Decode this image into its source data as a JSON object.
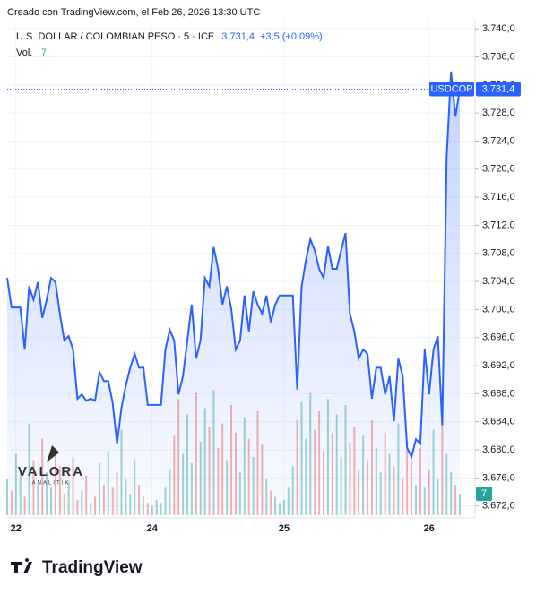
{
  "credit": "Creado con TradingView.com, el Feb 26, 2026 13:30 UTC",
  "brand": "TradingView",
  "watermark": {
    "title": "VALORA",
    "subtitle": "ANALITIK"
  },
  "chart_data": {
    "type": "line",
    "title": "U.S. DOLLAR / COLOMBIAN PESO · 5 · ICE",
    "symbol": "USDCOP",
    "last_label": "3.731,4",
    "change": "+3,5 (+0,09%)",
    "color": "#2962ff",
    "grid": true,
    "categories": [
      null,
      null,
      "22",
      null,
      null,
      null,
      null,
      null,
      null,
      null,
      null,
      null,
      null,
      null,
      null,
      null,
      null,
      null,
      null,
      null,
      null,
      null,
      null,
      null,
      null,
      null,
      null,
      null,
      null,
      null,
      null,
      null,
      null,
      "24",
      null,
      null,
      null,
      null,
      null,
      null,
      null,
      null,
      null,
      null,
      null,
      null,
      null,
      null,
      null,
      null,
      null,
      null,
      null,
      null,
      null,
      null,
      null,
      null,
      null,
      null,
      null,
      null,
      null,
      "25",
      null,
      null,
      null,
      null,
      null,
      null,
      null,
      null,
      null,
      null,
      null,
      null,
      null,
      null,
      null,
      null,
      null,
      null,
      null,
      null,
      null,
      null,
      null,
      null,
      null,
      null,
      null,
      null,
      null,
      null,
      null,
      null,
      "26",
      null,
      null,
      null,
      null,
      null,
      null,
      null
    ],
    "values": [
      3704.5,
      3700.3,
      3700.3,
      3700.3,
      3694.3,
      3703.3,
      3701.4,
      3703.9,
      3698.8,
      3701.4,
      3704.5,
      3703.9,
      3699.4,
      3695.6,
      3696.2,
      3694.3,
      3687.3,
      3687.9,
      3687.0,
      3687.3,
      3687.0,
      3691.1,
      3689.8,
      3689.8,
      3686.7,
      3680.9,
      3686.0,
      3689.2,
      3691.7,
      3693.7,
      3691.7,
      3691.7,
      3686.4,
      3686.4,
      3686.4,
      3686.4,
      3694.3,
      3697.1,
      3695.6,
      3687.9,
      3690.5,
      3695.6,
      3700.7,
      3693.0,
      3695.6,
      3704.5,
      3703.3,
      3708.9,
      3705.8,
      3700.7,
      3703.3,
      3700.1,
      3694.3,
      3695.6,
      3702.0,
      3696.9,
      3702.6,
      3700.7,
      3699.4,
      3702.0,
      3698.2,
      3700.7,
      3702.0,
      3702.0,
      3702.0,
      3702.0,
      3688.6,
      3703.3,
      3707.1,
      3710.0,
      3708.4,
      3705.8,
      3704.5,
      3709.0,
      3705.8,
      3705.8,
      3708.4,
      3710.9,
      3699.4,
      3696.9,
      3693.0,
      3694.3,
      3693.7,
      3687.3,
      3691.7,
      3691.7,
      3687.9,
      3690.5,
      3684.1,
      3693.0,
      3690.5,
      3680.3,
      3679.0,
      3681.5,
      3680.9,
      3694.3,
      3687.9,
      3694.3,
      3696.2,
      3683.5,
      3721.7,
      3733.9,
      3727.5,
      3731.4
    ],
    "volume": {
      "name": "Vol.",
      "up_color": "#26a69a",
      "down_color": "#ef5350",
      "values": [
        12,
        8,
        20,
        15,
        6,
        30,
        18,
        10,
        25,
        14,
        9,
        22,
        16,
        7,
        11,
        19,
        5,
        8,
        13,
        4,
        6,
        17,
        10,
        21,
        9,
        14,
        28,
        12,
        7,
        18,
        10,
        6,
        4,
        3,
        5,
        4,
        9,
        15,
        26,
        38,
        20,
        33,
        17,
        40,
        24,
        35,
        29,
        41,
        22,
        30,
        18,
        36,
        27,
        14,
        32,
        25,
        19,
        34,
        23,
        12,
        8,
        6,
        4,
        5,
        9,
        16,
        31,
        37,
        25,
        40,
        28,
        34,
        21,
        38,
        27,
        33,
        19,
        36,
        24,
        29,
        15,
        26,
        18,
        31,
        22,
        14,
        27,
        20,
        16,
        30,
        12,
        24,
        18,
        10,
        22,
        9,
        15,
        28,
        12,
        35,
        20,
        14,
        10,
        7
      ]
    },
    "ylim": [
      3670.3,
      3741.3
    ],
    "yticks": [
      {
        "value": 3672,
        "label": "3.672,0"
      },
      {
        "value": 3676,
        "label": "3.676,0"
      },
      {
        "value": 3680,
        "label": "3.680,0"
      },
      {
        "value": 3684,
        "label": "3.684,0"
      },
      {
        "value": 3688,
        "label": "3.688,0"
      },
      {
        "value": 3692,
        "label": "3.692,0"
      },
      {
        "value": 3696,
        "label": "3.696,0"
      },
      {
        "value": 3700,
        "label": "3.700,0"
      },
      {
        "value": 3704,
        "label": "3.704,0"
      },
      {
        "value": 3708,
        "label": "3.708,0"
      },
      {
        "value": 3712,
        "label": "3.712,0"
      },
      {
        "value": 3716,
        "label": "3.716,0"
      },
      {
        "value": 3720,
        "label": "3.720,0"
      },
      {
        "value": 3724,
        "label": "3.724,0"
      },
      {
        "value": 3728,
        "label": "3.728,0"
      },
      {
        "value": 3732,
        "label": "3.732,0"
      },
      {
        "value": 3736,
        "label": "3.736,0"
      },
      {
        "value": 3740,
        "label": "3.740,0"
      }
    ]
  }
}
